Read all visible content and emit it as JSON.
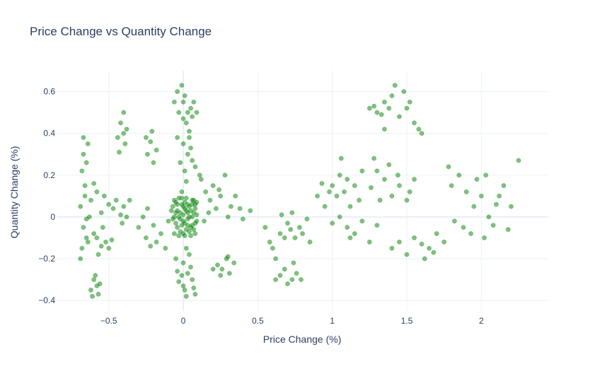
{
  "chart_data": {
    "type": "scatter",
    "title": "Price Change vs Quantity Change",
    "xlabel": "Price Change (%)",
    "ylabel": "Quantity Change (%)",
    "xlim": [
      -0.85,
      2.45
    ],
    "ylim": [
      -0.45,
      0.7
    ],
    "xticks": [
      -0.5,
      0,
      0.5,
      1,
      1.5,
      2
    ],
    "xtick_labels": [
      "−0.5",
      "0",
      "0.5",
      "1",
      "1.5",
      "2"
    ],
    "yticks": [
      -0.4,
      -0.2,
      0,
      0.2,
      0.4,
      0.6
    ],
    "ytick_labels": [
      "−0.4",
      "−0.2",
      "0",
      "0.2",
      "0.4",
      "0.6"
    ],
    "grid": true,
    "marker_color": "#008000",
    "series": [
      {
        "points": [
          [
            -0.01,
            0.06
          ],
          [
            0.03,
            -0.04
          ],
          [
            -0.05,
            0.02
          ],
          [
            0.06,
            0.08
          ],
          [
            0.0,
            -0.02
          ],
          [
            0.08,
            0.04
          ],
          [
            -0.06,
            -0.08
          ],
          [
            0.04,
            0.0
          ],
          [
            -0.03,
            0.09
          ],
          [
            0.07,
            -0.06
          ],
          [
            0.02,
            0.03
          ],
          [
            -0.04,
            -0.05
          ],
          [
            0.09,
            0.01
          ],
          [
            0.01,
            0.07
          ],
          [
            -0.07,
            0.05
          ],
          [
            0.05,
            -0.09
          ],
          [
            0.0,
            0.01
          ],
          [
            -0.02,
            -0.07
          ],
          [
            0.06,
            0.06
          ],
          [
            0.03,
            -0.01
          ],
          [
            -0.05,
            -0.03
          ],
          [
            0.08,
            -0.08
          ],
          [
            -0.01,
            0.09
          ],
          [
            0.02,
            -0.06
          ],
          [
            -0.06,
            0.08
          ],
          [
            0.04,
            0.05
          ],
          [
            0.07,
            0.02
          ],
          [
            -0.03,
            -0.09
          ],
          [
            0.01,
            -0.03
          ],
          [
            0.09,
            0.07
          ],
          [
            -0.04,
            0.03
          ],
          [
            0.05,
            -0.05
          ],
          [
            -0.02,
            0.02
          ],
          [
            0.0,
            -0.08
          ],
          [
            0.06,
            0.0
          ],
          [
            -0.07,
            -0.01
          ],
          [
            0.03,
            0.06
          ],
          [
            0.08,
            -0.03
          ],
          [
            -0.05,
            0.07
          ],
          [
            0.02,
            0.09
          ],
          [
            -0.01,
            -0.04
          ],
          [
            0.04,
            -0.07
          ],
          [
            -0.06,
            0.0
          ],
          [
            0.07,
            0.08
          ],
          [
            0.01,
            0.04
          ],
          [
            -0.03,
            0.0
          ],
          [
            0.05,
            0.03
          ],
          [
            0.0,
            0.05
          ],
          [
            -0.08,
            0.03
          ],
          [
            0.09,
            -0.02
          ],
          [
            -0.02,
            -0.01
          ],
          [
            0.03,
            0.02
          ],
          [
            0.06,
            -0.04
          ],
          [
            -0.04,
            0.06
          ],
          [
            0.01,
            -0.09
          ],
          [
            0.08,
            0.06
          ],
          [
            0.0,
            0.55
          ],
          [
            0.03,
            0.5
          ],
          [
            -0.04,
            0.6
          ],
          [
            0.02,
            0.45
          ],
          [
            0.05,
            0.52
          ],
          [
            -0.01,
            0.63
          ],
          [
            0.06,
            0.48
          ],
          [
            0.01,
            0.58
          ],
          [
            -0.03,
            0.5
          ],
          [
            0.04,
            0.41
          ],
          [
            0.07,
            0.55
          ],
          [
            0.0,
            0.47
          ],
          [
            0.09,
            0.5
          ],
          [
            -0.06,
            0.55
          ],
          [
            0.0,
            0.35
          ],
          [
            0.03,
            0.3
          ],
          [
            -0.02,
            0.26
          ],
          [
            0.05,
            0.33
          ],
          [
            0.01,
            0.22
          ],
          [
            0.06,
            0.27
          ],
          [
            -0.04,
            0.38
          ],
          [
            0.02,
            0.17
          ],
          [
            0.08,
            0.24
          ],
          [
            0.11,
            0.2
          ],
          [
            -0.01,
            0.12
          ],
          [
            0.04,
            0.38
          ],
          [
            0.0,
            -0.22
          ],
          [
            0.03,
            -0.27
          ],
          [
            -0.03,
            -0.31
          ],
          [
            0.05,
            -0.24
          ],
          [
            0.01,
            -0.35
          ],
          [
            0.06,
            -0.3
          ],
          [
            -0.05,
            -0.2
          ],
          [
            0.02,
            -0.38
          ],
          [
            0.07,
            -0.34
          ],
          [
            -0.01,
            -0.28
          ],
          [
            0.04,
            -0.18
          ],
          [
            0.08,
            -0.37
          ],
          [
            -0.04,
            -0.26
          ],
          [
            0.02,
            -0.15
          ],
          [
            0.0,
            -0.33
          ],
          [
            -0.67,
            0.3
          ],
          [
            -0.65,
            0.26
          ],
          [
            -0.68,
            0.22
          ],
          [
            -0.64,
            0.35
          ],
          [
            -0.66,
            0.1
          ],
          [
            -0.69,
            0.05
          ],
          [
            -0.63,
            0.0
          ],
          [
            -0.67,
            -0.05
          ],
          [
            -0.65,
            -0.1
          ],
          [
            -0.68,
            -0.15
          ],
          [
            -0.64,
            -0.12
          ],
          [
            -0.66,
            0.15
          ],
          [
            -0.69,
            -0.2
          ],
          [
            -0.62,
            0.08
          ],
          [
            -0.67,
            0.38
          ],
          [
            -0.65,
            -0.01
          ],
          [
            -0.6,
            -0.3
          ],
          [
            -0.58,
            -0.33
          ],
          [
            -0.62,
            -0.35
          ],
          [
            -0.57,
            -0.37
          ],
          [
            -0.59,
            -0.28
          ],
          [
            -0.56,
            -0.32
          ],
          [
            -0.61,
            -0.38
          ],
          [
            -0.58,
            -0.1
          ],
          [
            -0.55,
            -0.14
          ],
          [
            -0.6,
            -0.08
          ],
          [
            -0.52,
            -0.12
          ],
          [
            -0.57,
            -0.18
          ],
          [
            -0.5,
            -0.15
          ],
          [
            -0.54,
            -0.05
          ],
          [
            -0.48,
            -0.11
          ],
          [
            -0.55,
            0.02
          ],
          [
            -0.5,
            0.06
          ],
          [
            -0.53,
            0.1
          ],
          [
            -0.47,
            0.04
          ],
          [
            -0.58,
            0.12
          ],
          [
            -0.45,
            0.08
          ],
          [
            -0.6,
            0.16
          ],
          [
            -0.42,
            0.01
          ],
          [
            -0.4,
            0.4
          ],
          [
            -0.42,
            0.45
          ],
          [
            -0.39,
            0.35
          ],
          [
            -0.43,
            0.31
          ],
          [
            -0.4,
            0.5
          ],
          [
            -0.38,
            0.42
          ],
          [
            -0.44,
            0.38
          ],
          [
            -0.4,
            0.05
          ],
          [
            -0.38,
            0.0
          ],
          [
            -0.41,
            -0.03
          ],
          [
            -0.36,
            0.08
          ],
          [
            -0.3,
            -0.05
          ],
          [
            -0.27,
            0.0
          ],
          [
            -0.25,
            -0.1
          ],
          [
            -0.22,
            -0.14
          ],
          [
            -0.18,
            -0.12
          ],
          [
            -0.2,
            -0.04
          ],
          [
            -0.15,
            -0.08
          ],
          [
            -0.1,
            -0.02
          ],
          [
            -0.12,
            -0.15
          ],
          [
            -0.24,
            0.04
          ],
          [
            -0.24,
            0.3
          ],
          [
            -0.22,
            0.36
          ],
          [
            -0.2,
            0.26
          ],
          [
            -0.18,
            0.32
          ],
          [
            -0.25,
            0.38
          ],
          [
            -0.21,
            0.41
          ],
          [
            0.12,
            0.18
          ],
          [
            0.15,
            0.12
          ],
          [
            0.18,
            0.08
          ],
          [
            0.2,
            0.15
          ],
          [
            0.22,
            0.04
          ],
          [
            0.25,
            0.1
          ],
          [
            0.28,
            0.2
          ],
          [
            0.3,
            0.0
          ],
          [
            0.14,
            -0.02
          ],
          [
            0.17,
            0.02
          ],
          [
            0.24,
            0.13
          ],
          [
            0.32,
            0.05
          ],
          [
            0.35,
            0.1
          ],
          [
            0.38,
            0.04
          ],
          [
            0.4,
            -0.01
          ],
          [
            0.45,
            0.03
          ],
          [
            0.23,
            -0.23
          ],
          [
            0.26,
            -0.25
          ],
          [
            0.29,
            -0.2
          ],
          [
            0.31,
            -0.27
          ],
          [
            0.2,
            -0.25
          ],
          [
            0.34,
            -0.22
          ],
          [
            0.25,
            -0.28
          ],
          [
            0.3,
            -0.19
          ],
          [
            0.55,
            -0.05
          ],
          [
            0.58,
            -0.12
          ],
          [
            0.6,
            -0.15
          ],
          [
            0.62,
            -0.2
          ],
          [
            0.65,
            -0.08
          ],
          [
            0.68,
            -0.1
          ],
          [
            0.7,
            -0.03
          ],
          [
            0.72,
            -0.06
          ],
          [
            0.75,
            -0.1
          ],
          [
            0.78,
            -0.05
          ],
          [
            0.8,
            -0.08
          ],
          [
            0.83,
            -0.01
          ],
          [
            0.66,
            0.01
          ],
          [
            0.73,
            0.02
          ],
          [
            0.85,
            -0.12
          ],
          [
            0.62,
            -0.3
          ],
          [
            0.65,
            -0.28
          ],
          [
            0.7,
            -0.32
          ],
          [
            0.68,
            -0.25
          ],
          [
            0.73,
            -0.3
          ],
          [
            0.76,
            -0.27
          ],
          [
            0.79,
            -0.3
          ],
          [
            0.74,
            -0.22
          ],
          [
            0.9,
            0.1
          ],
          [
            0.95,
            0.05
          ],
          [
            1.0,
            0.15
          ],
          [
            1.03,
            0.1
          ],
          [
            1.05,
            0.2
          ],
          [
            1.08,
            0.12
          ],
          [
            1.1,
            0.18
          ],
          [
            1.12,
            0.05
          ],
          [
            1.15,
            0.15
          ],
          [
            1.18,
            0.08
          ],
          [
            1.2,
            0.22
          ],
          [
            0.93,
            0.16
          ],
          [
            0.98,
            0.12
          ],
          [
            1.06,
            0.28
          ],
          [
            1.0,
            -0.03
          ],
          [
            1.05,
            0.0
          ],
          [
            1.1,
            -0.05
          ],
          [
            1.15,
            -0.08
          ],
          [
            1.2,
            -0.02
          ],
          [
            1.25,
            -0.12
          ],
          [
            1.3,
            -0.04
          ],
          [
            1.12,
            -0.1
          ],
          [
            1.25,
            0.52
          ],
          [
            1.3,
            0.5
          ],
          [
            1.35,
            0.55
          ],
          [
            1.38,
            0.52
          ],
          [
            1.4,
            0.58
          ],
          [
            1.45,
            0.48
          ],
          [
            1.5,
            0.52
          ],
          [
            1.55,
            0.45
          ],
          [
            1.28,
            0.53
          ],
          [
            1.33,
            0.49
          ],
          [
            1.42,
            0.63
          ],
          [
            1.48,
            0.6
          ],
          [
            1.52,
            0.55
          ],
          [
            1.58,
            0.42
          ],
          [
            1.6,
            0.4
          ],
          [
            1.35,
            0.42
          ],
          [
            1.28,
            0.28
          ],
          [
            1.3,
            0.22
          ],
          [
            1.35,
            0.18
          ],
          [
            1.38,
            0.25
          ],
          [
            1.4,
            0.1
          ],
          [
            1.45,
            0.15
          ],
          [
            1.5,
            0.08
          ],
          [
            1.55,
            0.18
          ],
          [
            1.32,
            0.08
          ],
          [
            1.44,
            0.2
          ],
          [
            1.52,
            0.12
          ],
          [
            1.26,
            0.14
          ],
          [
            1.4,
            -0.15
          ],
          [
            1.45,
            -0.12
          ],
          [
            1.5,
            -0.18
          ],
          [
            1.55,
            -0.1
          ],
          [
            1.6,
            -0.13
          ],
          [
            1.65,
            -0.15
          ],
          [
            1.7,
            -0.08
          ],
          [
            1.62,
            -0.2
          ],
          [
            1.75,
            -0.12
          ],
          [
            1.68,
            -0.17
          ],
          [
            1.8,
            0.15
          ],
          [
            1.85,
            0.2
          ],
          [
            1.9,
            0.12
          ],
          [
            1.95,
            0.05
          ],
          [
            2.0,
            0.1
          ],
          [
            2.05,
            0.0
          ],
          [
            2.1,
            0.06
          ],
          [
            2.15,
            0.15
          ],
          [
            2.2,
            0.05
          ],
          [
            2.25,
            0.27
          ],
          [
            1.88,
            -0.05
          ],
          [
            1.93,
            -0.08
          ],
          [
            2.02,
            -0.1
          ],
          [
            2.08,
            -0.04
          ],
          [
            1.97,
            0.18
          ],
          [
            2.12,
            0.1
          ],
          [
            1.82,
            -0.02
          ],
          [
            2.18,
            -0.06
          ],
          [
            1.78,
            0.24
          ],
          [
            2.03,
            0.2
          ]
        ]
      }
    ]
  }
}
